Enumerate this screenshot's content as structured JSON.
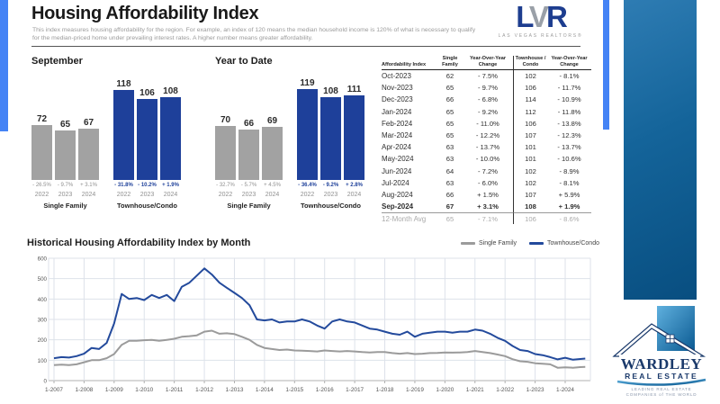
{
  "page": {
    "title": "Housing Affordability Index",
    "subtitle": "This index measures housing affordability for the region. For example, an index of 120 means the median household income is 120% of what is necessary to qualify for the median-priced home under prevailing interest rates. A higher number means greater affordability."
  },
  "lvr_logo": {
    "l": "L",
    "v": "V",
    "r": "R",
    "org": "LAS VEGAS REALTORS®"
  },
  "colors": {
    "accent_stripe": "#4483f5",
    "bar_blue": "#1e409a",
    "bar_gray": "#a2a2a2",
    "line_blue": "#234a9c",
    "line_gray": "#9b9b9b"
  },
  "table": {
    "headers": [
      "Affordability Index",
      "Single Family",
      "Year-Over-Year Change",
      "Townhouse / Condo",
      "Year-Over-Year Change"
    ],
    "rows": [
      [
        "Oct-2023",
        "62",
        "- 7.5%",
        "102",
        "- 8.1%"
      ],
      [
        "Nov-2023",
        "65",
        "- 9.7%",
        "106",
        "- 11.7%"
      ],
      [
        "Dec-2023",
        "66",
        "- 6.8%",
        "114",
        "- 10.9%"
      ],
      [
        "Jan-2024",
        "65",
        "- 9.2%",
        "112",
        "- 11.8%"
      ],
      [
        "Feb-2024",
        "65",
        "- 11.0%",
        "106",
        "- 13.8%"
      ],
      [
        "Mar-2024",
        "65",
        "- 12.2%",
        "107",
        "- 12.3%"
      ],
      [
        "Apr-2024",
        "63",
        "- 13.7%",
        "101",
        "- 13.7%"
      ],
      [
        "May-2024",
        "63",
        "- 10.0%",
        "101",
        "- 10.6%"
      ],
      [
        "Jun-2024",
        "64",
        "- 7.2%",
        "102",
        "- 8.9%"
      ],
      [
        "Jul-2024",
        "63",
        "- 6.0%",
        "102",
        "- 8.1%"
      ],
      [
        "Aug-2024",
        "66",
        "+ 1.5%",
        "107",
        "+ 5.9%"
      ],
      [
        "Sep-2024",
        "67",
        "+ 3.1%",
        "108",
        "+ 1.9%"
      ]
    ],
    "avg_row": [
      "12-Month Avg",
      "65",
      "- 7.1%",
      "106",
      "- 8.6%"
    ]
  },
  "chart_data": [
    {
      "type": "bar",
      "title": "September",
      "categories": [
        "2022",
        "2023",
        "2024"
      ],
      "groups": [
        {
          "label": "Single Family",
          "style": "gray",
          "values": [
            72,
            65,
            67
          ],
          "changes": [
            "- 26.5%",
            "- 9.7%",
            "+ 3.1%"
          ]
        },
        {
          "label": "Townhouse/Condo",
          "style": "blue",
          "values": [
            118,
            106,
            108
          ],
          "changes": [
            "- 31.8%",
            "- 10.2%",
            "+ 1.9%"
          ]
        }
      ]
    },
    {
      "type": "bar",
      "title": "Year to Date",
      "categories": [
        "2022",
        "2023",
        "2024"
      ],
      "groups": [
        {
          "label": "Single Family",
          "style": "gray",
          "values": [
            70,
            66,
            69
          ],
          "changes": [
            "- 32.7%",
            "- 5.7%",
            "+ 4.5%"
          ]
        },
        {
          "label": "Townhouse/Condo",
          "style": "blue",
          "values": [
            119,
            108,
            111
          ],
          "changes": [
            "- 36.4%",
            "- 9.2%",
            "+ 2.8%"
          ]
        }
      ]
    },
    {
      "type": "line",
      "title": "Historical Housing Affordability Index by Month",
      "ylim": [
        0,
        600
      ],
      "yticks": [
        0,
        100,
        200,
        300,
        400,
        500,
        600
      ],
      "xtick_labels": [
        "1-2007",
        "1-2008",
        "1-2009",
        "1-2010",
        "1-2011",
        "1-2012",
        "1-2013",
        "1-2014",
        "1-2015",
        "1-2016",
        "1-2017",
        "1-2018",
        "1-2019",
        "1-2020",
        "1-2021",
        "1-2022",
        "1-2023",
        "1-2024"
      ],
      "x_months": [
        0,
        3,
        6,
        9,
        12,
        15,
        18,
        21,
        24,
        27,
        30,
        33,
        36,
        39,
        42,
        45,
        48,
        51,
        54,
        57,
        60,
        63,
        66,
        69,
        72,
        75,
        78,
        81,
        84,
        87,
        90,
        93,
        96,
        99,
        102,
        105,
        108,
        111,
        114,
        117,
        120,
        123,
        126,
        129,
        132,
        135,
        138,
        141,
        144,
        147,
        150,
        153,
        156,
        159,
        162,
        165,
        168,
        171,
        174,
        177,
        180,
        183,
        186,
        189,
        192,
        195,
        198,
        201,
        204,
        207,
        210,
        212
      ],
      "series": [
        {
          "name": "Single Family",
          "color": "#9b9b9b",
          "values": [
            76,
            78,
            76,
            80,
            90,
            100,
            100,
            110,
            130,
            175,
            195,
            195,
            198,
            200,
            195,
            200,
            205,
            215,
            218,
            222,
            240,
            245,
            230,
            232,
            228,
            215,
            200,
            175,
            160,
            155,
            150,
            152,
            148,
            147,
            145,
            143,
            148,
            145,
            143,
            145,
            143,
            140,
            138,
            140,
            140,
            135,
            132,
            135,
            130,
            132,
            135,
            136,
            138,
            137,
            138,
            140,
            145,
            140,
            135,
            128,
            120,
            105,
            95,
            92,
            85,
            83,
            80,
            63,
            65,
            63,
            66,
            67
          ]
        },
        {
          "name": "Townhouse/Condo",
          "color": "#234a9c",
          "values": [
            110,
            115,
            113,
            120,
            132,
            160,
            155,
            185,
            280,
            425,
            400,
            405,
            395,
            420,
            405,
            420,
            390,
            460,
            480,
            515,
            550,
            520,
            480,
            455,
            430,
            405,
            370,
            300,
            295,
            300,
            285,
            290,
            290,
            300,
            290,
            270,
            255,
            290,
            300,
            290,
            285,
            270,
            255,
            250,
            240,
            230,
            225,
            240,
            215,
            230,
            235,
            240,
            240,
            235,
            240,
            240,
            250,
            245,
            230,
            210,
            195,
            170,
            150,
            145,
            130,
            125,
            115,
            104,
            112,
            103,
            106,
            108
          ]
        }
      ]
    }
  ],
  "wardley": {
    "name": "WARDLEY",
    "sub": "REAL ESTATE",
    "tagline1": "LEADING REAL ESTATE",
    "tagline2": "COMPANIES of THE WORLD"
  }
}
